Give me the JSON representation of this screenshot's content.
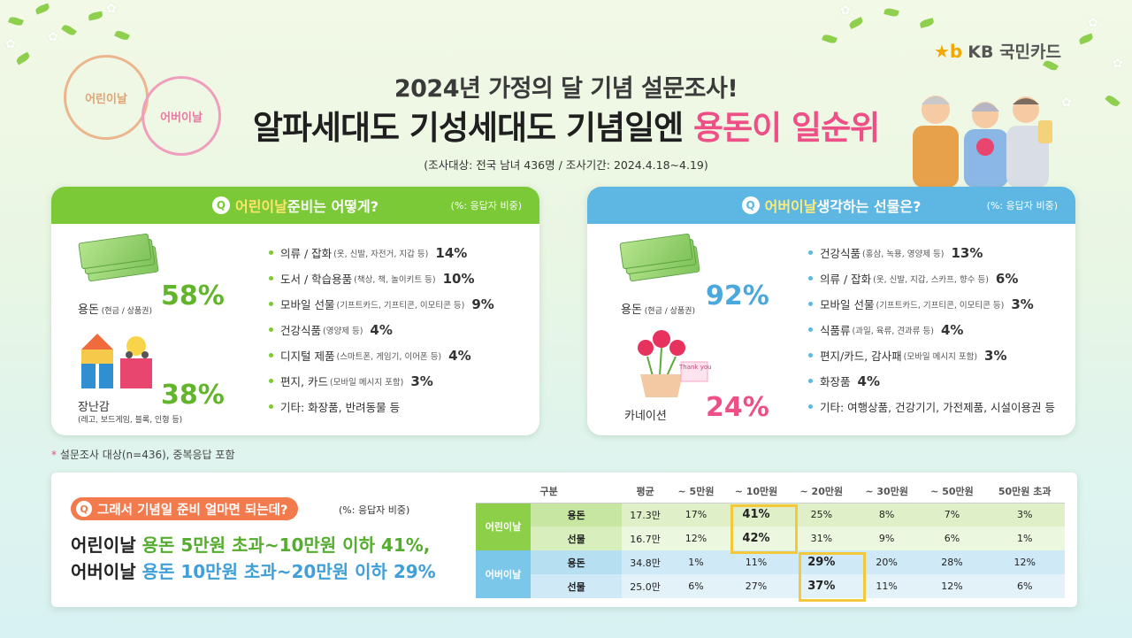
{
  "brand": {
    "logo": "★b",
    "name": "KB 국민카드"
  },
  "header": {
    "title1": "2024년 가정의 달 기념 설문조사!",
    "title2_main": "알파세대도 기성세대도 기념일엔 ",
    "title2_highlight": "용돈이 일순위",
    "subtitle": "(조사대상: 전국 남녀 436명 / 조사기간: 2024.4.18~4.19)"
  },
  "stamps": {
    "children": "어린이날",
    "parents": "어버이날"
  },
  "children_panel": {
    "q_icon": "Q",
    "question_highlight": "어린이날",
    "question_rest": " 준비는 어떻게?",
    "unit": "(%: 응답자 비중)",
    "money_label": "용돈",
    "money_sub": " (현금 / 상품권)",
    "money_pct": "58%",
    "toy_label": "장난감",
    "toy_sub": "(레고, 보드게임, 블록, 인형 등)",
    "toy_pct": "38%",
    "items": [
      {
        "label": "의류 / 잡화",
        "sub": "(옷, 신발, 자전거, 지갑 등)",
        "pct": "14%"
      },
      {
        "label": "도서 / 학습용품",
        "sub": "(책상, 책, 놀이키트 등)",
        "pct": "10%"
      },
      {
        "label": "모바일 선물",
        "sub": "(기프트카드, 기프티콘, 이모티콘 등)",
        "pct": "9%"
      },
      {
        "label": "건강식품",
        "sub": "(영양제 등)",
        "pct": "4%"
      },
      {
        "label": "디지털 제품",
        "sub": "(스마트폰, 게임기, 이어폰 등)",
        "pct": "4%"
      },
      {
        "label": "편지, 카드",
        "sub": "(모바일 메시지 포함)",
        "pct": "3%"
      },
      {
        "label": "기타: 화장품, 반려동물 등",
        "sub": "",
        "pct": ""
      }
    ]
  },
  "parents_panel": {
    "q_icon": "Q",
    "question_highlight": "어버이날",
    "question_rest": " 생각하는 선물은?",
    "unit": "(%: 응답자 비중)",
    "money_label": "용돈",
    "money_sub": " (현금 / 상품권)",
    "money_pct": "92%",
    "flower_label": "카네이션",
    "flower_pct": "24%",
    "card_text": "Thank you",
    "items": [
      {
        "label": "건강식품",
        "sub": "(홍삼, 녹용, 영양제 등)",
        "pct": "13%"
      },
      {
        "label": "의류 / 잡화",
        "sub": "(옷, 신발, 지갑, 스카프, 향수 등)",
        "pct": "6%"
      },
      {
        "label": "모바일 선물",
        "sub": "(기프트카드, 기프티콘, 이모티콘 등)",
        "pct": "3%"
      },
      {
        "label": "식품류",
        "sub": "(과일, 육류, 견과류 등)",
        "pct": "4%"
      },
      {
        "label": "편지/카드, 감사패",
        "sub": "(모바일 메시지 포함)",
        "pct": "3%"
      },
      {
        "label": "화장품",
        "sub": "",
        "pct": "4%"
      },
      {
        "label": "기타: 여행상품, 건강기기, 가전제품, 시설이용권 등",
        "sub": "",
        "pct": ""
      }
    ]
  },
  "footnote": {
    "star": "*",
    "text": " 설문조사 대상(n=436), 중복응답 포함"
  },
  "bottom": {
    "q_icon": "Q",
    "question": "그래서 기념일 준비 얼마면 되는데?",
    "unit": "(%: 응답자 비중)",
    "line1": {
      "a": "어린이날 ",
      "b": "용돈 5만원 초과~10만원 이하 41%,"
    },
    "line2": {
      "a": "어버이날 ",
      "b": "용돈 10만원 초과~20만원 이하 29%"
    },
    "table": {
      "headers": [
        "구분",
        "평균",
        "~ 5만원",
        "~ 10만원",
        "~ 20만원",
        "~ 30만원",
        "~ 50만원",
        "50만원 초과"
      ],
      "groups": [
        {
          "name": "어린이날",
          "rows": [
            {
              "label": "용돈",
              "values": [
                "17.3만",
                "17%",
                "41%",
                "25%",
                "8%",
                "7%",
                "3%"
              ]
            },
            {
              "label": "선물",
              "values": [
                "16.7만",
                "12%",
                "42%",
                "31%",
                "9%",
                "6%",
                "1%"
              ]
            }
          ]
        },
        {
          "name": "어버이날",
          "rows": [
            {
              "label": "용돈",
              "values": [
                "34.8만",
                "1%",
                "11%",
                "29%",
                "20%",
                "28%",
                "12%"
              ]
            },
            {
              "label": "선물",
              "values": [
                "25.0만",
                "6%",
                "27%",
                "37%",
                "11%",
                "12%",
                "6%"
              ]
            }
          ]
        }
      ]
    }
  },
  "colors": {
    "green": "#7cc937",
    "blue": "#5db7e2",
    "pink": "#ee4f86",
    "orange": "#f27a4c",
    "highlight_box": "#f3c83a"
  }
}
